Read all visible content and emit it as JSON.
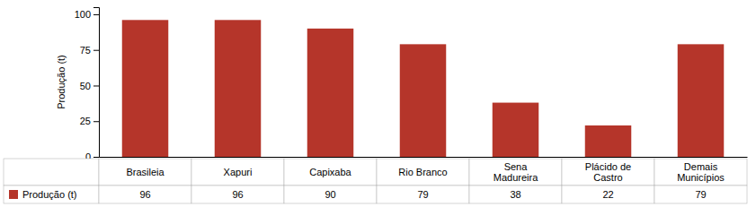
{
  "chart_data": {
    "type": "bar",
    "categories": [
      "Brasileia",
      "Xapuri",
      "Capixaba",
      "Rio Branco",
      "Sena\nMadureira",
      "Plácido de\nCastro",
      "Demais\nMunicípios"
    ],
    "series": [
      {
        "name": "Produção (t)",
        "color": "#b5352a",
        "values": [
          96,
          96,
          90,
          79,
          38,
          22,
          79
        ]
      }
    ],
    "ylabel": "Produção (t)",
    "ylim": [
      0,
      105
    ],
    "yticks": [
      0,
      25,
      50,
      75,
      100
    ],
    "grid": false,
    "legend": "bottom-left",
    "data_labels": true
  }
}
